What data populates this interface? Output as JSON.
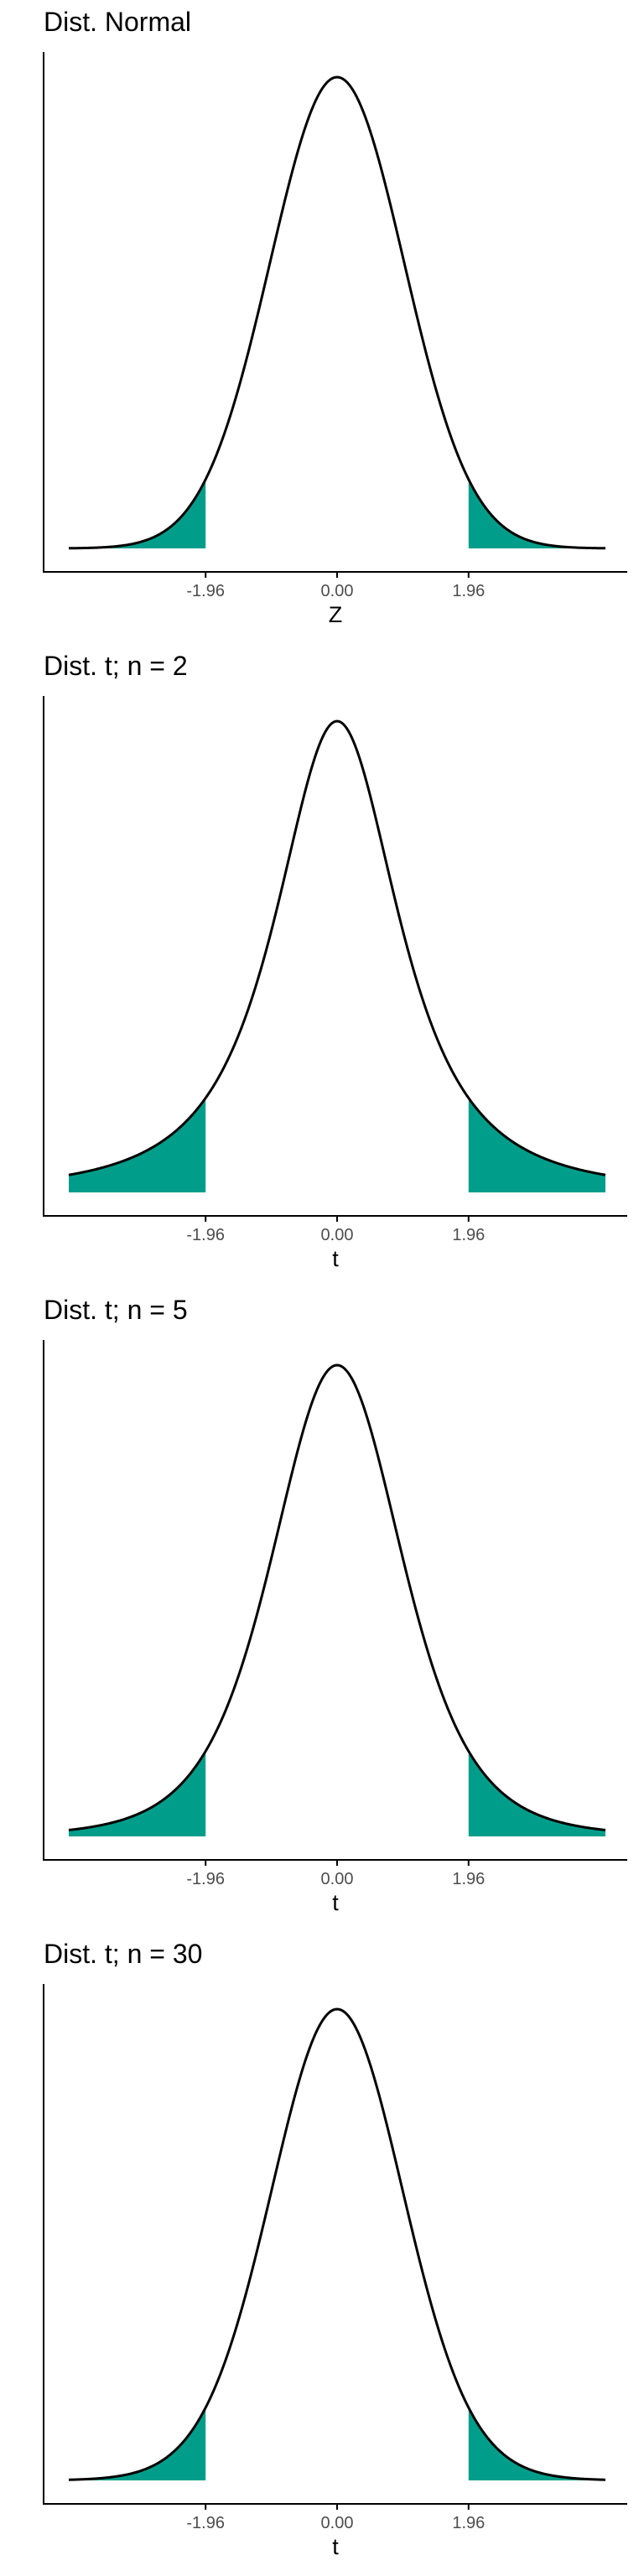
{
  "colors": {
    "tail_fill": "#009E8A",
    "curve": "#000000",
    "axis": "#000000",
    "tick_label": "#4d4d4d"
  },
  "chart_data": [
    {
      "type": "area",
      "title": "Dist. Normal",
      "xlabel": "Z",
      "ylabel": "",
      "distribution": "normal",
      "df": null,
      "xlim": [
        -4.0,
        4.0
      ],
      "xticks": [
        -1.96,
        0.0,
        1.96
      ],
      "tick_labels": [
        "-1.96",
        "0.00",
        "1.96"
      ],
      "shaded_regions": [
        [
          -4.0,
          -1.96
        ],
        [
          1.96,
          4.0
        ]
      ],
      "grid": false,
      "legend": "none"
    },
    {
      "type": "area",
      "title": "Dist. t; n = 2",
      "xlabel": "t",
      "ylabel": "",
      "distribution": "t",
      "df": 2,
      "xlim": [
        -4.0,
        4.0
      ],
      "xticks": [
        -1.96,
        0.0,
        1.96
      ],
      "tick_labels": [
        "-1.96",
        "0.00",
        "1.96"
      ],
      "shaded_regions": [
        [
          -4.0,
          -1.96
        ],
        [
          1.96,
          4.0
        ]
      ],
      "grid": false,
      "legend": "none"
    },
    {
      "type": "area",
      "title": "Dist. t; n = 5",
      "xlabel": "t",
      "ylabel": "",
      "distribution": "t",
      "df": 5,
      "xlim": [
        -4.0,
        4.0
      ],
      "xticks": [
        -1.96,
        0.0,
        1.96
      ],
      "tick_labels": [
        "-1.96",
        "0.00",
        "1.96"
      ],
      "shaded_regions": [
        [
          -4.0,
          -1.96
        ],
        [
          1.96,
          4.0
        ]
      ],
      "grid": false,
      "legend": "none"
    },
    {
      "type": "area",
      "title": "Dist. t; n = 30",
      "xlabel": "t",
      "ylabel": "",
      "distribution": "t",
      "df": 30,
      "xlim": [
        -4.0,
        4.0
      ],
      "xticks": [
        -1.96,
        0.0,
        1.96
      ],
      "tick_labels": [
        "-1.96",
        "0.00",
        "1.96"
      ],
      "shaded_regions": [
        [
          -4.0,
          -1.96
        ],
        [
          1.96,
          4.0
        ]
      ],
      "grid": false,
      "legend": "none"
    }
  ]
}
